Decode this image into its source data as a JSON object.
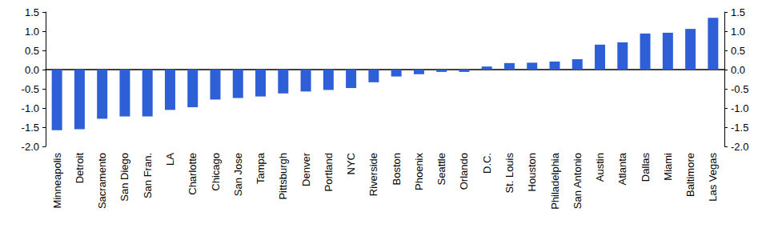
{
  "chart_data": {
    "type": "bar",
    "categories": [
      "Minneapolis",
      "Detroit",
      "Sacramento",
      "San Diego",
      "San Fran.",
      "LA",
      "Charlotte",
      "Chicago",
      "San Jose",
      "Tampa",
      "Pittsburgh",
      "Denver",
      "Portland",
      "NYC",
      "Riverside",
      "Boston",
      "Phoenix",
      "Seattle",
      "Orlando",
      "D.C.",
      "St. Louis",
      "Houston",
      "Philadelphia",
      "San Antonio",
      "Austin",
      "Atlanta",
      "Dallas",
      "Miami",
      "Baltimore",
      "Las Vegas"
    ],
    "values": [
      -1.58,
      -1.55,
      -1.28,
      -1.22,
      -1.22,
      -1.05,
      -0.98,
      -0.78,
      -0.74,
      -0.7,
      -0.62,
      -0.57,
      -0.53,
      -0.48,
      -0.33,
      -0.18,
      -0.12,
      -0.06,
      -0.06,
      0.08,
      0.17,
      0.18,
      0.21,
      0.27,
      0.65,
      0.71,
      0.94,
      0.96,
      1.06,
      1.35
    ],
    "color": "#2e5fd6",
    "ylim": [
      -2.0,
      1.5
    ],
    "yticks": [
      {
        "value": -2.0,
        "label": "-2.0"
      },
      -1.5,
      {
        "value": -1.0,
        "label": "-1.0"
      },
      -0.5,
      {
        "value": 0,
        "label": "0.0"
      },
      0.5,
      {
        "value": 1.0,
        "label": "1.0"
      },
      1.5
    ],
    "grid": false
  }
}
